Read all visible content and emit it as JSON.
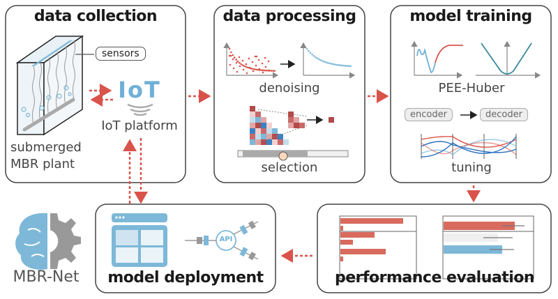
{
  "colors": {
    "red": "#d9534a",
    "blue": "#7db8d8",
    "gray": "#999999",
    "dark": "#1a1a1a"
  },
  "stages": {
    "collection": {
      "title": "data collection",
      "sensors": "sensors",
      "iot_logo": "IoT",
      "iot_label": "IoT platform",
      "plant_line1": "submerged",
      "plant_line2": "MBR plant"
    },
    "processing": {
      "title": "data processing",
      "denoising": "denoising",
      "selection": "selection"
    },
    "training": {
      "title": "model training",
      "loss": "PEE-Huber",
      "encoder": "encoder",
      "decoder": "decoder",
      "tuning": "tuning"
    },
    "evaluation": {
      "title": "performance evaluation"
    },
    "deployment": {
      "title": "model deployment",
      "api": "API"
    }
  },
  "logo": {
    "name": "MBR-Net"
  }
}
